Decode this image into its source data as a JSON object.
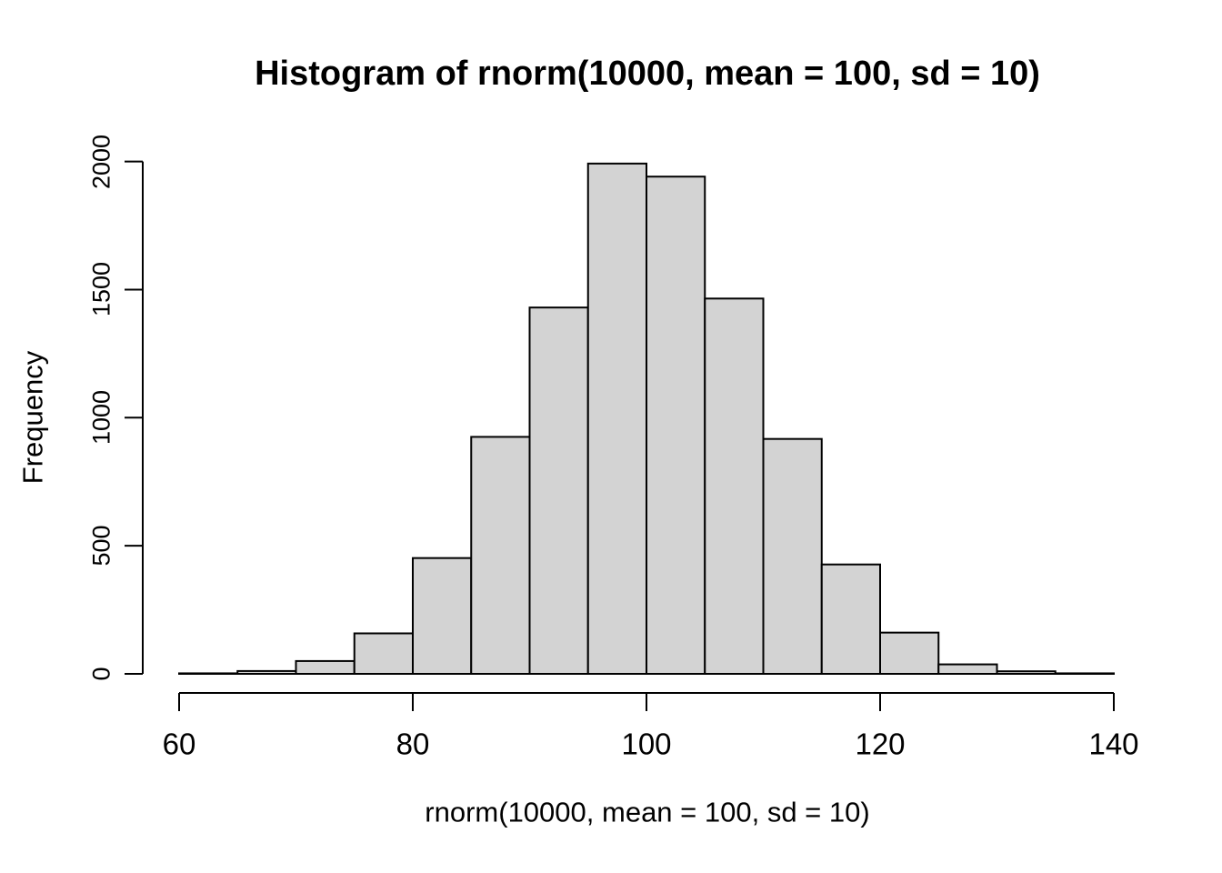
{
  "chart_data": {
    "type": "bar",
    "subtype": "histogram",
    "title": "Histogram of rnorm(10000, mean = 100, sd = 10)",
    "xlabel": "rnorm(10000, mean = 100, sd = 10)",
    "ylabel": "Frequency",
    "xlim": [
      60,
      140
    ],
    "ylim": [
      0,
      2000
    ],
    "x_tick_values": [
      60,
      80,
      100,
      120,
      140
    ],
    "y_tick_values": [
      0,
      500,
      1000,
      1500,
      2000
    ],
    "grid": false,
    "legend": false,
    "bin_width": 5,
    "bin_edges": [
      60,
      65,
      70,
      75,
      80,
      85,
      90,
      95,
      100,
      105,
      110,
      115,
      120,
      125,
      130,
      135,
      140
    ],
    "counts": [
      2,
      11,
      50,
      158,
      452,
      925,
      1430,
      1992,
      1941,
      1465,
      917,
      427,
      161,
      37,
      10,
      2
    ]
  },
  "colors": {
    "background": "#ffffff",
    "bar_fill": "#d3d3d3",
    "bar_stroke": "#000000",
    "axis": "#000000",
    "text": "#000000"
  }
}
